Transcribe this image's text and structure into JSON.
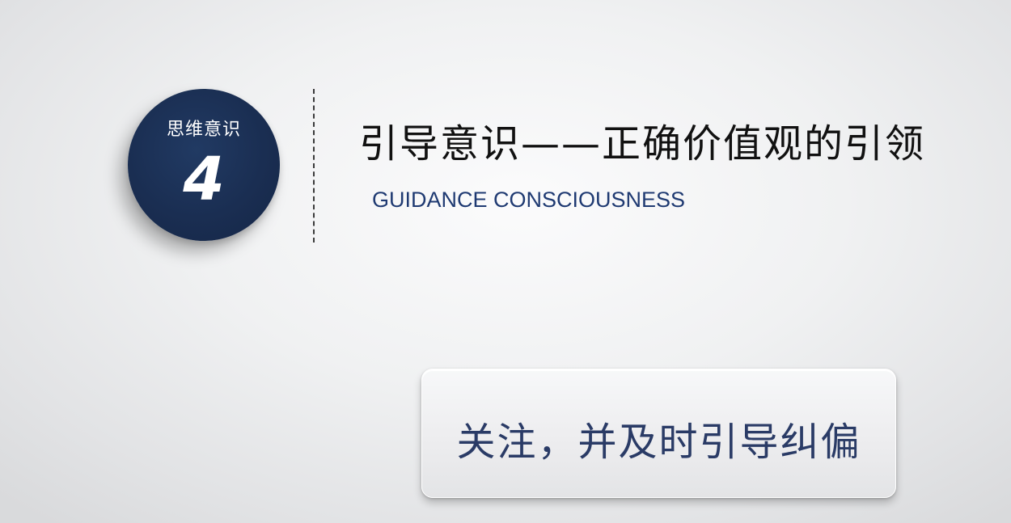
{
  "badge": {
    "label": "思维意识",
    "number": "4"
  },
  "title": {
    "cn": "引导意识——正确价值观的引领",
    "en": "GUIDANCE CONSCIOUSNESS"
  },
  "card": {
    "text": "关注，并及时引导纠偏"
  },
  "colors": {
    "badge_navy": "#1a2e52",
    "title_dark": "#111111",
    "subtitle_blue": "#1f3a72",
    "card_text": "#2a3b66"
  }
}
